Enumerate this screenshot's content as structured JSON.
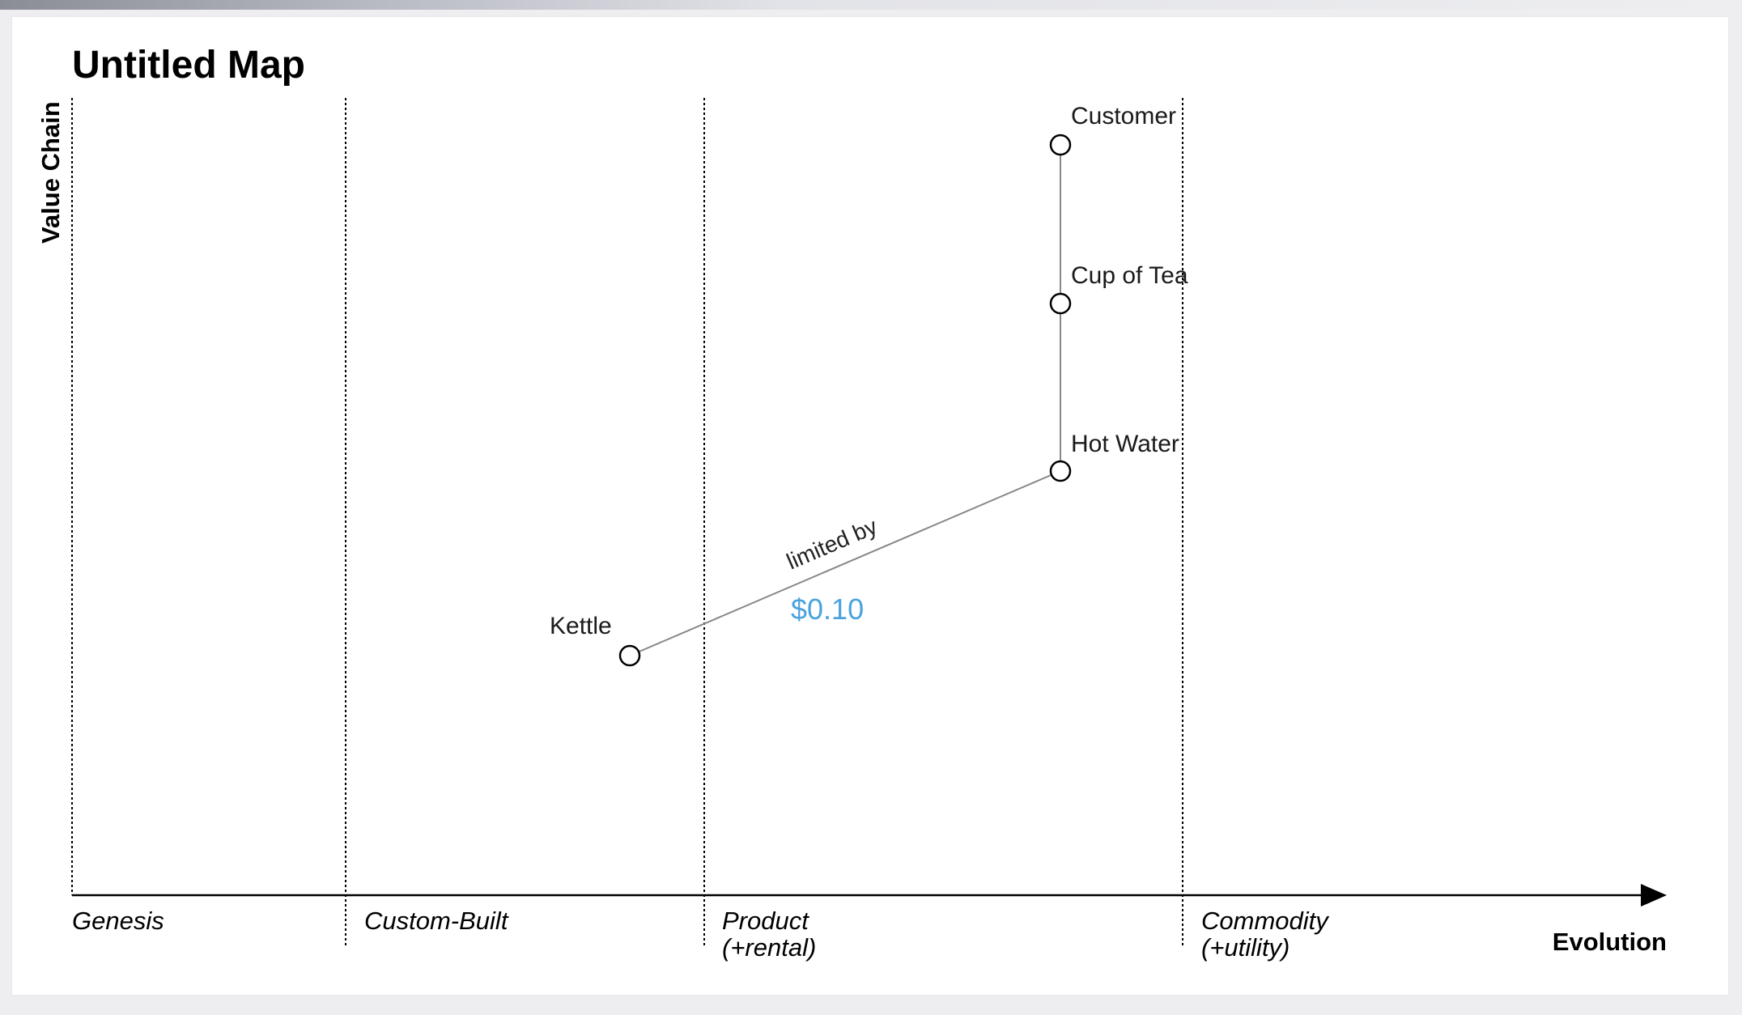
{
  "map": {
    "title": "Untitled Map",
    "y_axis_label": "Value Chain",
    "x_axis_label": "Evolution",
    "stages": [
      {
        "label": "Genesis",
        "sub": ""
      },
      {
        "label": "Custom-Built",
        "sub": ""
      },
      {
        "label": "Product",
        "sub": "(+rental)"
      },
      {
        "label": "Commodity",
        "sub": "(+utility)"
      }
    ],
    "components": [
      {
        "id": "customer",
        "label": "Customer",
        "evolution": 0.62,
        "visibility": 0.95
      },
      {
        "id": "cup-of-tea",
        "label": "Cup of Tea",
        "evolution": 0.62,
        "visibility": 0.79
      },
      {
        "id": "hot-water",
        "label": "Hot Water",
        "evolution": 0.62,
        "visibility": 0.53
      },
      {
        "id": "kettle",
        "label": "Kettle",
        "evolution": 0.35,
        "visibility": 0.3
      }
    ],
    "links": [
      {
        "from": "customer",
        "to": "cup-of-tea",
        "label": "",
        "price": ""
      },
      {
        "from": "cup-of-tea",
        "to": "hot-water",
        "label": "",
        "price": ""
      },
      {
        "from": "hot-water",
        "to": "kettle",
        "label": "limited by",
        "price": "$0.10"
      }
    ],
    "colors": {
      "price": "#4aa3df",
      "line": "#888888",
      "axis": "#000000"
    }
  }
}
